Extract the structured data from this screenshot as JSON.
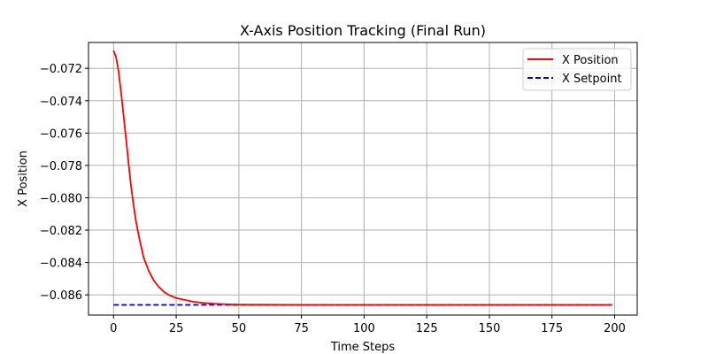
{
  "chart_data": {
    "type": "line",
    "title": "X-Axis Position Tracking (Final Run)",
    "xlabel": "Time Steps",
    "ylabel": "X Position",
    "xlim": [
      -10,
      209
    ],
    "ylim": [
      -0.08725,
      -0.0704
    ],
    "x_ticks": [
      0,
      25,
      50,
      75,
      100,
      125,
      150,
      175,
      200
    ],
    "x_tick_labels": [
      "0",
      "25",
      "50",
      "75",
      "100",
      "125",
      "150",
      "175",
      "200"
    ],
    "y_ticks": [
      -0.072,
      -0.074,
      -0.076,
      -0.078,
      -0.08,
      -0.082,
      -0.084,
      -0.086
    ],
    "y_tick_labels": [
      "−0.072",
      "−0.074",
      "−0.076",
      "−0.078",
      "−0.080",
      "−0.082",
      "−0.084",
      "−0.086"
    ],
    "grid": true,
    "legend_position": "upper-right",
    "series": [
      {
        "name": "X Position",
        "color": "#ff0000",
        "style": "solid",
        "x": [
          0,
          1,
          2,
          3,
          4,
          5,
          6,
          7,
          8,
          9,
          10,
          12,
          14,
          16,
          18,
          20,
          22,
          25,
          28,
          32,
          36,
          40,
          45,
          50,
          60,
          80,
          100,
          150,
          199
        ],
        "y": [
          -0.0709,
          -0.0713,
          -0.0722,
          -0.0735,
          -0.0749,
          -0.0764,
          -0.0779,
          -0.0793,
          -0.0805,
          -0.0815,
          -0.0823,
          -0.0837,
          -0.0845,
          -0.0851,
          -0.0855,
          -0.0858,
          -0.086,
          -0.0862,
          -0.0863,
          -0.08643,
          -0.0865,
          -0.08655,
          -0.08658,
          -0.0866,
          -0.08661,
          -0.08662,
          -0.08662,
          -0.08662,
          -0.08662
        ]
      },
      {
        "name": "X Setpoint",
        "color": "#0000cc",
        "style": "dashed",
        "x": [
          0,
          199
        ],
        "y": [
          -0.08662,
          -0.08662
        ]
      }
    ]
  }
}
